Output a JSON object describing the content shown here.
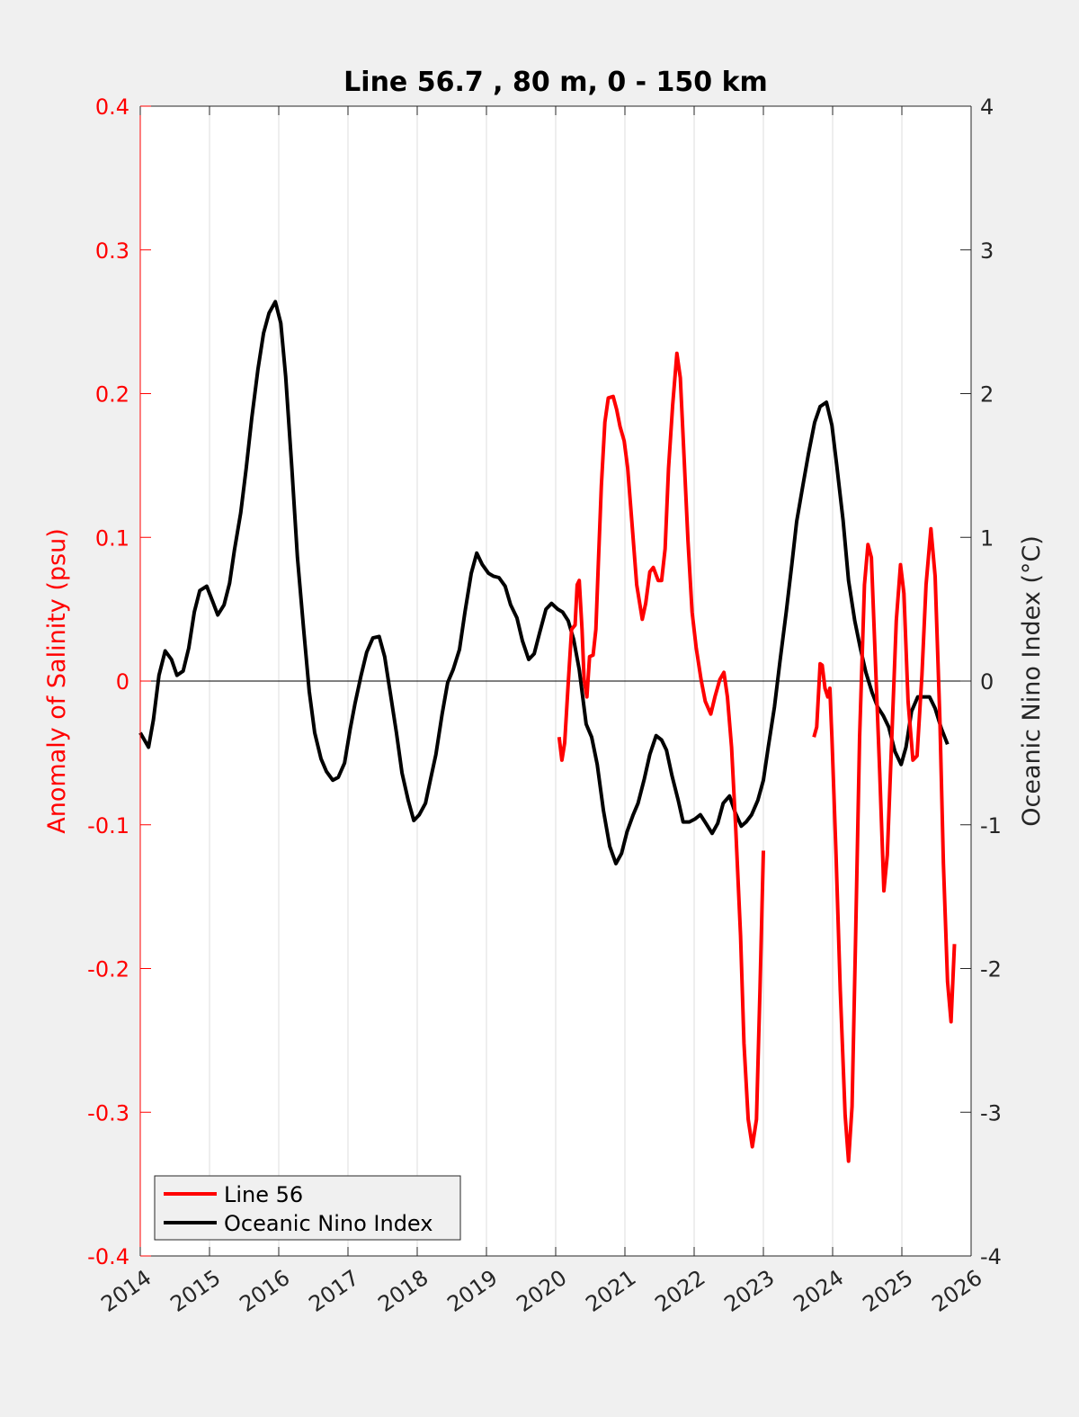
{
  "chart_data": {
    "type": "line",
    "title": "Line 56.7 , 80 m, 0 - 150 km",
    "xlabel": "",
    "ylabel_left": "Anomaly of Salinity (psu)",
    "ylabel_right": "Oceanic Nino Index (°C)",
    "xlim": [
      2014,
      2026
    ],
    "ylim_left": [
      -0.4,
      0.4
    ],
    "ylim_right": [
      -4,
      4
    ],
    "x_ticks": [
      "2014",
      "2015",
      "2016",
      "2017",
      "2018",
      "2019",
      "2020",
      "2021",
      "2022",
      "2023",
      "2024",
      "2025",
      "2026"
    ],
    "x_tick_values": [
      2014,
      2015,
      2016,
      2017,
      2018,
      2019,
      2020,
      2021,
      2022,
      2023,
      2024,
      2025,
      2026
    ],
    "y_ticks_left": [
      "0.4",
      "0.3",
      "0.2",
      "0.1",
      "0",
      "-0.1",
      "-0.2",
      "-0.3",
      "-0.4"
    ],
    "y_tick_values_left": [
      0.4,
      0.3,
      0.2,
      0.1,
      0,
      -0.1,
      -0.2,
      -0.3,
      -0.4
    ],
    "y_ticks_right": [
      "4",
      "3",
      "2",
      "1",
      "0",
      "-1",
      "-2",
      "-3",
      "-4"
    ],
    "y_tick_values_right": [
      4,
      3,
      2,
      1,
      0,
      -1,
      -2,
      -3,
      -4
    ],
    "grid": "vertical",
    "legend_position": "bottom-left",
    "colors": {
      "line56": "#ff0000",
      "oni": "#000000",
      "left_axis": "#ff0000",
      "right_axis": "#262626",
      "grid": "#dcdcdc"
    },
    "series": [
      {
        "name": "Line 56",
        "axis": "left",
        "segments": [
          {
            "x": [
              2020.05,
              2020.09,
              2020.13,
              2020.18,
              2020.23,
              2020.28,
              2020.31,
              2020.34,
              2020.38,
              2020.41,
              2020.45,
              2020.49,
              2020.54,
              2020.58,
              2020.62,
              2020.66,
              2020.71,
              2020.76,
              2020.83,
              2020.88,
              2020.93,
              2020.99,
              2021.04,
              2021.1,
              2021.17,
              2021.25,
              2021.3,
              2021.36,
              2021.41,
              2021.48,
              2021.53,
              2021.58,
              2021.63,
              2021.69,
              2021.75,
              2021.8,
              2021.85,
              2021.91,
              2021.97,
              2022.03,
              2022.1,
              2022.16,
              2022.24,
              2022.3,
              2022.37,
              2022.43,
              2022.48,
              2022.54,
              2022.6,
              2022.67,
              2022.72,
              2022.78,
              2022.84,
              2022.9,
              2022.95,
              2023.0
            ],
            "y": [
              -0.039,
              -0.055,
              -0.043,
              -0.002,
              0.036,
              0.039,
              0.067,
              0.07,
              0.036,
              0.001,
              -0.011,
              0.017,
              0.018,
              0.036,
              0.086,
              0.136,
              0.18,
              0.197,
              0.198,
              0.189,
              0.177,
              0.167,
              0.148,
              0.111,
              0.067,
              0.043,
              0.054,
              0.076,
              0.079,
              0.07,
              0.07,
              0.092,
              0.148,
              0.192,
              0.228,
              0.211,
              0.161,
              0.098,
              0.048,
              0.023,
              0.001,
              -0.014,
              -0.023,
              -0.011,
              0.001,
              0.006,
              -0.011,
              -0.046,
              -0.102,
              -0.177,
              -0.252,
              -0.305,
              -0.324,
              -0.305,
              -0.215,
              -0.118
            ]
          },
          {
            "x": [
              2023.73,
              2023.77,
              2023.82,
              2023.85,
              2023.89,
              2023.93,
              2023.96,
              2023.99,
              2024.05,
              2024.11,
              2024.18,
              2024.23,
              2024.28,
              2024.33,
              2024.39,
              2024.46,
              2024.51,
              2024.56,
              2024.61,
              2024.68,
              2024.74,
              2024.79,
              2024.85,
              2024.92,
              2024.98,
              2025.03,
              2025.09,
              2025.16,
              2025.22,
              2025.29,
              2025.35,
              2025.42,
              2025.48,
              2025.55,
              2025.6,
              2025.66,
              2025.71,
              2025.76
            ],
            "y": [
              -0.039,
              -0.032,
              0.012,
              0.011,
              -0.005,
              -0.011,
              -0.005,
              -0.039,
              -0.121,
              -0.215,
              -0.302,
              -0.334,
              -0.296,
              -0.183,
              -0.039,
              0.067,
              0.095,
              0.086,
              0.023,
              -0.064,
              -0.146,
              -0.121,
              -0.046,
              0.042,
              0.081,
              0.061,
              -0.014,
              -0.055,
              -0.052,
              0.004,
              0.067,
              0.106,
              0.073,
              -0.027,
              -0.127,
              -0.209,
              -0.237,
              -0.183
            ]
          }
        ]
      },
      {
        "name": "Oceanic Nino Index",
        "axis": "right",
        "segments": [
          {
            "x": [
              2014.0,
              2014.12,
              2014.19,
              2014.27,
              2014.36,
              2014.45,
              2014.53,
              2014.62,
              2014.7,
              2014.78,
              2014.86,
              2014.96,
              2015.04,
              2015.12,
              2015.21,
              2015.29,
              2015.36,
              2015.45,
              2015.53,
              2015.61,
              2015.7,
              2015.78,
              2015.86,
              2015.95,
              2016.03,
              2016.1,
              2016.19,
              2016.27,
              2016.36,
              2016.44,
              2016.52,
              2016.61,
              2016.69,
              2016.78,
              2016.86,
              2016.95,
              2017.03,
              2017.1,
              2017.19,
              2017.27,
              2017.36,
              2017.45,
              2017.53,
              2017.61,
              2017.7,
              2017.78,
              2017.87,
              2017.95,
              2018.03,
              2018.12,
              2018.19,
              2018.27,
              2018.36,
              2018.44,
              2018.52,
              2018.61,
              2018.69,
              2018.78,
              2018.86,
              2018.94,
              2019.03,
              2019.1,
              2019.18,
              2019.27,
              2019.35,
              2019.44,
              2019.52,
              2019.61,
              2019.69,
              2019.77,
              2019.86,
              2019.94,
              2020.03,
              2020.1,
              2020.18,
              2020.26,
              2020.34,
              2020.44,
              2020.52,
              2020.6,
              2020.69,
              2020.78,
              2020.87,
              2020.95,
              2021.03,
              2021.12,
              2021.19,
              2021.28,
              2021.36,
              2021.45,
              2021.53,
              2021.6,
              2021.68,
              2021.77,
              2021.84,
              2021.93,
              2022.01,
              2022.09,
              2022.17,
              2022.26,
              2022.34,
              2022.42,
              2022.51,
              2022.59,
              2022.68,
              2022.75,
              2022.83,
              2022.92,
              2023.0,
              2023.07,
              2023.16,
              2023.24,
              2023.33,
              2023.41,
              2023.48,
              2023.57,
              2023.65,
              2023.74,
              2023.82,
              2023.91,
              2023.99,
              2024.06,
              2024.15,
              2024.23,
              2024.32,
              2024.4,
              2024.48,
              2024.57,
              2024.65,
              2024.73,
              2024.81,
              2024.9,
              2024.99,
              2025.06,
              2025.14,
              2025.23,
              2025.31,
              2025.4,
              2025.48,
              2025.57,
              2025.66
            ],
            "y": [
              -0.36,
              -0.46,
              -0.27,
              0.04,
              0.21,
              0.15,
              0.04,
              0.07,
              0.23,
              0.48,
              0.63,
              0.66,
              0.56,
              0.46,
              0.53,
              0.68,
              0.91,
              1.17,
              1.48,
              1.83,
              2.17,
              2.42,
              2.56,
              2.64,
              2.49,
              2.12,
              1.48,
              0.86,
              0.36,
              -0.07,
              -0.36,
              -0.54,
              -0.63,
              -0.69,
              -0.67,
              -0.57,
              -0.34,
              -0.16,
              0.04,
              0.2,
              0.3,
              0.31,
              0.17,
              -0.08,
              -0.36,
              -0.64,
              -0.83,
              -0.97,
              -0.93,
              -0.85,
              -0.69,
              -0.51,
              -0.23,
              -0.01,
              0.08,
              0.22,
              0.48,
              0.75,
              0.89,
              0.81,
              0.75,
              0.73,
              0.72,
              0.66,
              0.53,
              0.44,
              0.28,
              0.15,
              0.19,
              0.34,
              0.5,
              0.54,
              0.5,
              0.48,
              0.42,
              0.29,
              0.08,
              -0.3,
              -0.39,
              -0.58,
              -0.9,
              -1.15,
              -1.27,
              -1.2,
              -1.05,
              -0.93,
              -0.85,
              -0.68,
              -0.51,
              -0.38,
              -0.41,
              -0.48,
              -0.66,
              -0.83,
              -0.98,
              -0.98,
              -0.96,
              -0.93,
              -0.99,
              -1.06,
              -0.99,
              -0.85,
              -0.8,
              -0.91,
              -1.01,
              -0.98,
              -0.93,
              -0.83,
              -0.69,
              -0.46,
              -0.18,
              0.14,
              0.48,
              0.81,
              1.11,
              1.36,
              1.58,
              1.8,
              1.91,
              1.94,
              1.78,
              1.5,
              1.12,
              0.7,
              0.42,
              0.23,
              0.06,
              -0.08,
              -0.18,
              -0.24,
              -0.32,
              -0.49,
              -0.58,
              -0.46,
              -0.21,
              -0.11,
              -0.11,
              -0.11,
              -0.19,
              -0.33,
              -0.44
            ]
          }
        ]
      }
    ]
  },
  "legend": {
    "items": [
      {
        "label": "Line 56",
        "color": "#ff0000"
      },
      {
        "label": "Oceanic Nino Index",
        "color": "#000000"
      }
    ]
  }
}
